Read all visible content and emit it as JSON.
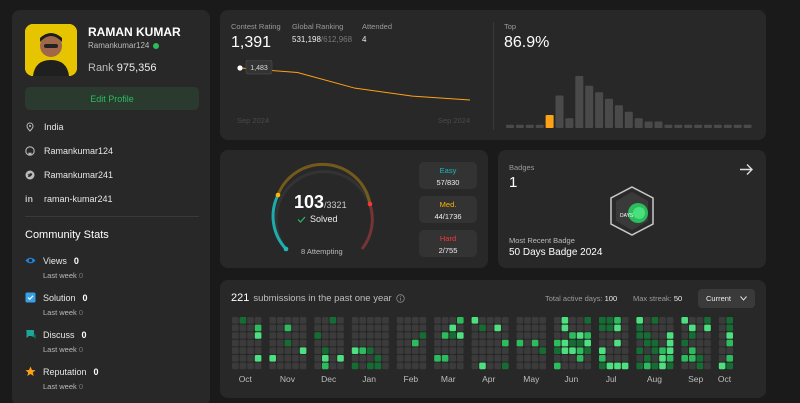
{
  "profile": {
    "name": "RAMAN KUMAR",
    "username": "Ramankumar124",
    "rank_label": "Rank",
    "rank_value": "975,356",
    "edit_label": "Edit Profile",
    "location": "India",
    "github": "Ramankumar124",
    "twitter": "Ramankumar241",
    "linkedin": "raman-kumar241"
  },
  "community": {
    "title": "Community Stats",
    "items": [
      {
        "icon": "eye-icon",
        "label": "Views",
        "value": "0",
        "sub_label": "Last week",
        "sub_value": "0",
        "color": "#1e88e5"
      },
      {
        "icon": "check-square-icon",
        "label": "Solution",
        "value": "0",
        "sub_label": "Last week",
        "sub_value": "0",
        "color": "#39a0e8"
      },
      {
        "icon": "chat-icon",
        "label": "Discuss",
        "value": "0",
        "sub_label": "Last week",
        "sub_value": "0",
        "color": "#1ea59a"
      },
      {
        "icon": "star-icon",
        "label": "Reputation",
        "value": "0",
        "sub_label": "Last week",
        "sub_value": "0",
        "color": "#ffa116"
      }
    ]
  },
  "contest": {
    "rating_label": "Contest Rating",
    "rating_value": "1,391",
    "global_label": "Global Ranking",
    "global_value": "531,198",
    "global_total": "/612,968",
    "attended_label": "Attended",
    "attended_value": "4",
    "tooltip_value": "1,483",
    "x_start": "Sep 2024",
    "x_end": "Sep 2024",
    "top_label": "Top",
    "top_value": "86.9%",
    "rating_history": [
      1483,
      1470,
      1425,
      1402,
      1391
    ],
    "histogram": [
      1,
      1,
      1,
      1,
      4,
      10,
      3,
      16,
      13,
      11,
      9,
      7,
      5,
      3,
      2,
      2,
      1,
      1,
      1,
      1,
      1,
      1,
      1,
      1,
      1
    ],
    "highlight_index": 4,
    "accent": "#ffa116"
  },
  "solved": {
    "count": "103",
    "total": "/3321",
    "label": "Solved",
    "attempting": "8 Attempting",
    "difficulties": [
      {
        "name": "Easy",
        "value": "57/830",
        "color": "#1cbaba"
      },
      {
        "name": "Med.",
        "value": "44/1736",
        "color": "#ffb700"
      },
      {
        "name": "Hard",
        "value": "2/755",
        "color": "#f63737"
      }
    ]
  },
  "badges": {
    "label": "Badges",
    "count": "1",
    "recent_label": "Most Recent Badge",
    "recent_name": "50 Days Badge 2024",
    "badge_text": "DAYS"
  },
  "submissions": {
    "count": "221",
    "text": "submissions in the past one year",
    "active_label": "Total active days:",
    "active_value": "100",
    "streak_label": "Max streak:",
    "streak_value": "50",
    "current_label": "Current",
    "months": [
      "Oct",
      "Nov",
      "Dec",
      "Jan",
      "Feb",
      "Mar",
      "Apr",
      "May",
      "Jun",
      "Jul",
      "Aug",
      "Sep",
      "Oct"
    ]
  }
}
